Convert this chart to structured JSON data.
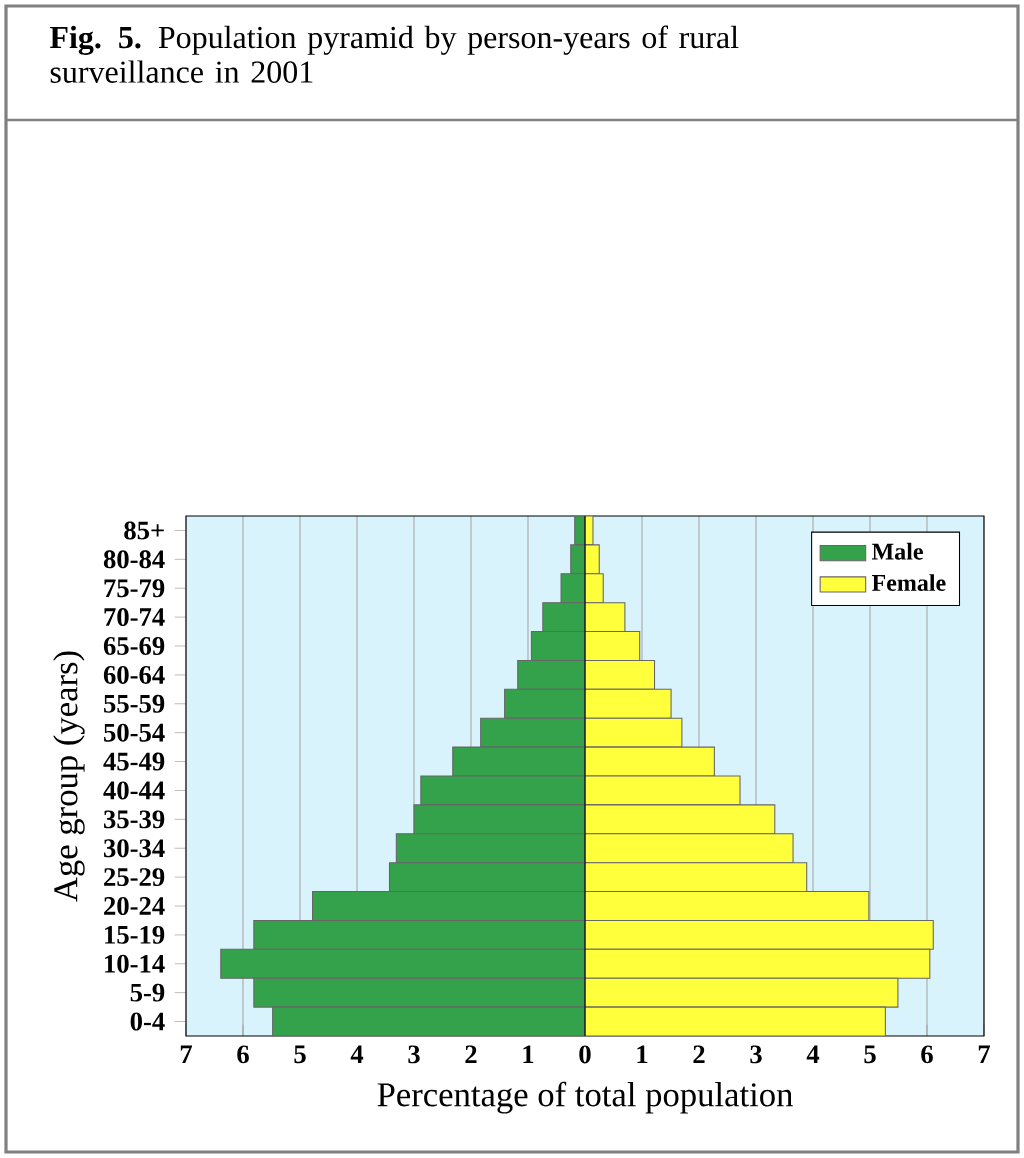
{
  "chart_data": {
    "type": "bar",
    "orientation": "horizontal",
    "title": "**Fig. 5.** Population pyramid by person-years of rural surveillance in 2001",
    "xlabel": "Percentage of total population",
    "ylabel": "Age group (years)",
    "categories": [
      "85+",
      "80-84",
      "75-79",
      "70-74",
      "65-69",
      "60-64",
      "55-59",
      "50-54",
      "45-49",
      "40-44",
      "35-39",
      "30-34",
      "25-29",
      "20-24",
      "15-19",
      "10-14",
      "5-9",
      "0-4"
    ],
    "series": [
      {
        "name": "Male",
        "color": "#33a24a",
        "values": [
          -0.18,
          -0.25,
          -0.42,
          -0.74,
          -0.94,
          -1.18,
          -1.41,
          -1.83,
          -2.32,
          -2.88,
          -3.0,
          -3.31,
          -3.43,
          -4.78,
          -5.81,
          -6.39,
          -5.81,
          -5.48
        ]
      },
      {
        "name": "Female",
        "color": "#ffff3c",
        "values": [
          0.14,
          0.25,
          0.32,
          0.7,
          0.96,
          1.22,
          1.51,
          1.7,
          2.27,
          2.72,
          3.33,
          3.65,
          3.89,
          4.98,
          6.11,
          6.05,
          5.49,
          5.27
        ]
      }
    ],
    "xlim": [
      -7,
      7
    ],
    "xticks": [
      {
        "value": -7,
        "label": "7"
      },
      {
        "value": -6,
        "label": "6"
      },
      {
        "value": -5,
        "label": "5"
      },
      {
        "value": -4,
        "label": "4"
      },
      {
        "value": -3,
        "label": "3"
      },
      {
        "value": -2,
        "label": "2"
      },
      {
        "value": -1,
        "label": "1"
      },
      0,
      1,
      2,
      3,
      4,
      5,
      6,
      7
    ],
    "grid": "x",
    "legend": "top right",
    "stacked": true
  }
}
